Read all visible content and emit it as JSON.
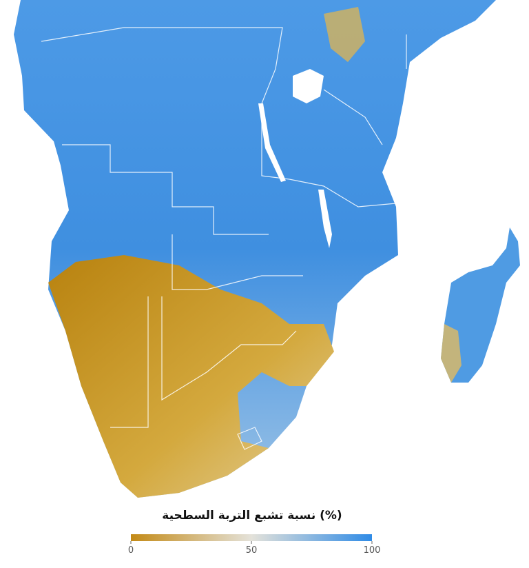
{
  "legend": {
    "title": "(%) نسبة تشبع التربة السطحية",
    "range": [
      0,
      100
    ],
    "ticks": [
      0,
      50,
      100
    ],
    "colors": [
      "#c38a16",
      "#e4e2da",
      "#2f8be6"
    ]
  }
}
